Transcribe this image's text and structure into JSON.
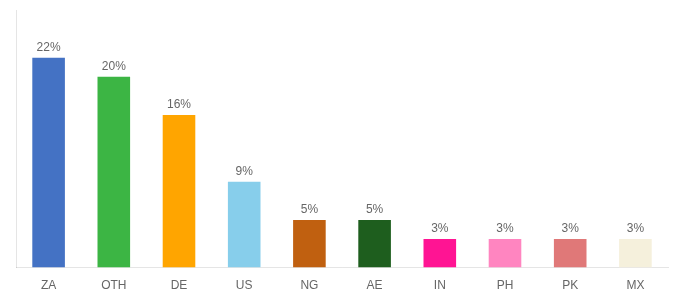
{
  "chart_data": {
    "type": "bar",
    "categories": [
      "ZA",
      "OTH",
      "DE",
      "US",
      "NG",
      "AE",
      "IN",
      "PH",
      "PK",
      "MX"
    ],
    "values": [
      22,
      20,
      16,
      9,
      5,
      5,
      3,
      3,
      3,
      3
    ],
    "value_labels": [
      "22%",
      "20%",
      "16%",
      "9%",
      "5%",
      "5%",
      "3%",
      "3%",
      "3%",
      "3%"
    ],
    "colors": [
      "#4472C4",
      "#3CB544",
      "#FFA500",
      "#87CEEB",
      "#C06010",
      "#1E5E1E",
      "#FF1493",
      "#FF85C0",
      "#E07878",
      "#F5F0DC"
    ],
    "ylim": [
      0,
      27
    ],
    "grid": false,
    "data_labels": true,
    "tick_labels": "x"
  }
}
